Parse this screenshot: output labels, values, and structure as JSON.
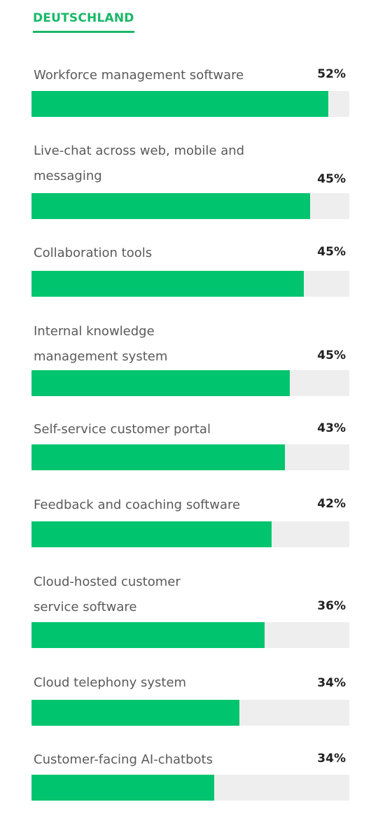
{
  "chart_data": {
    "type": "bar",
    "title": "DEUTSCHLAND",
    "categories": [
      "Workforce management software",
      "Live-chat across web, mobile and messaging",
      "Collaboration tools",
      "Internal knowledge management system",
      "Self-service customer portal",
      "Feedback and coaching software",
      "Cloud-hosted customer service software",
      "Cloud telephony system",
      "Customer-facing AI-chatbots"
    ],
    "values": [
      52,
      45,
      45,
      45,
      43,
      42,
      36,
      34,
      34
    ],
    "value_labels": [
      "52%",
      "45%",
      "45%",
      "45%",
      "43%",
      "42%",
      "36%",
      "34%",
      "34%"
    ],
    "fill_fractions": [
      0.935,
      0.877,
      0.856,
      0.813,
      0.797,
      0.755,
      0.734,
      0.654,
      0.575
    ],
    "orientation": "horizontal",
    "grid": false,
    "legend": "none",
    "colors": {
      "bar": "#00c46e",
      "track": "#eeeeee",
      "heading": "#18b868"
    }
  }
}
